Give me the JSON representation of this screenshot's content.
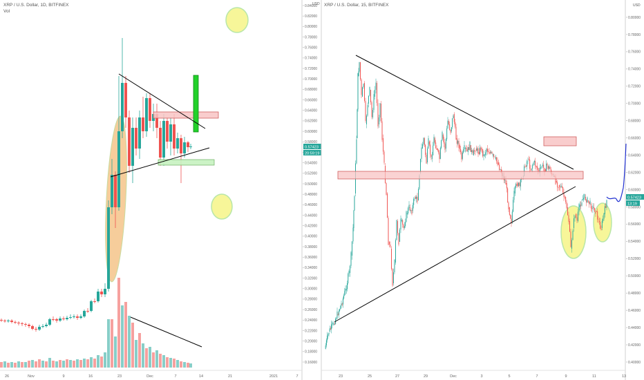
{
  "left_panel": {
    "title": "XRP / U.S. Dollar, 1D, BITFINEX",
    "sub": "Vol",
    "price_ticks": [
      "0.84000",
      "0.82000",
      "0.80000",
      "0.78000",
      "0.76000",
      "0.74000",
      "0.72000",
      "0.70000",
      "0.68000",
      "0.66000",
      "0.64000",
      "0.62000",
      "0.60000",
      "0.58000",
      "0.56000",
      "0.54000",
      "0.52000",
      "0.50000",
      "0.48000",
      "0.46000",
      "0.44000",
      "0.42000",
      "0.40000",
      "0.38000",
      "0.36000",
      "0.34000",
      "0.32000",
      "0.30000",
      "0.28000",
      "0.26000",
      "0.24000",
      "0.22000",
      "0.20000",
      "0.18000",
      "0.16000"
    ],
    "time_labels": [
      "26",
      "Nov",
      "9",
      "16",
      "23",
      "Dec",
      "7",
      "14",
      "21",
      "2021",
      "7"
    ],
    "price_badge": "0.57423",
    "countdown_badge": "20:59:19",
    "price_axis_note": "USD"
  },
  "right_panel": {
    "title": "XRP / U.S. Dollar, 15, BITFINEX",
    "price_ticks": [
      "0.80000",
      "0.78000",
      "0.76000",
      "0.74000",
      "0.72000",
      "0.70000",
      "0.68000",
      "0.66000",
      "0.64000",
      "0.62000",
      "0.60000",
      "0.58000",
      "0.56000",
      "0.54000",
      "0.52000",
      "0.50000",
      "0.48000",
      "0.46000",
      "0.44000",
      "0.42000",
      "0.40000"
    ],
    "time_labels": [
      "23",
      "25",
      "27",
      "29",
      "Dec",
      "3",
      "5",
      "7",
      "9",
      "11",
      "13"
    ],
    "price_badge": "0.57423",
    "countdown_badge": "13:19",
    "price_axis_note": "USD"
  },
  "chart_data": [
    {
      "type": "candlestick",
      "title": "XRP / U.S. Dollar, 1D, BITFINEX",
      "ylim": [
        0.16,
        0.84
      ],
      "x_ticks": [
        "26",
        "Nov",
        "9",
        "16",
        "23",
        "Dec",
        "7",
        "14",
        "21",
        "2021",
        "7"
      ],
      "series": [
        {
          "name": "Vol"
        }
      ],
      "last_price": 0.57423
    },
    {
      "type": "candlestick",
      "title": "XRP / U.S. Dollar, 15, BITFINEX",
      "ylim": [
        0.4,
        0.8
      ],
      "x_ticks": [
        "23",
        "25",
        "27",
        "29",
        "Dec",
        "3",
        "5",
        "7",
        "9",
        "11",
        "13"
      ],
      "last_price": 0.57423
    }
  ],
  "colors": {
    "up": "#26a69a",
    "down": "#ef5350",
    "orange_ellipse": "#f5c48a",
    "yellow_circle": "#f6f58e",
    "green_bar": "#22d12a",
    "pink_box": "#f8c4c4",
    "lightgreen_box": "#c6f2c0",
    "badge": "#26a69a",
    "projection": "#1f2fd1"
  }
}
